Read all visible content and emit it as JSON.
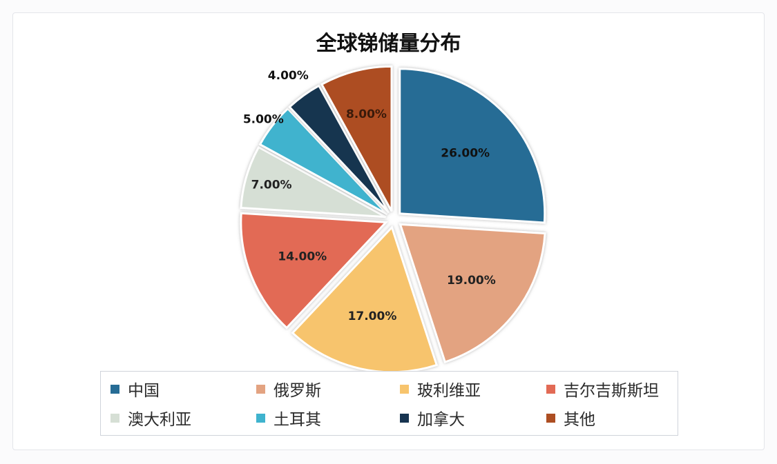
{
  "chart_data": {
    "type": "pie",
    "title": "全球锑储量分布",
    "categories": [
      "中国",
      "俄罗斯",
      "玻利维亚",
      "吉尔吉斯斯坦",
      "澳大利亚",
      "土耳其",
      "加拿大",
      "其他"
    ],
    "values": [
      26,
      19,
      17,
      14,
      7,
      5,
      4,
      8
    ],
    "data_labels": [
      "26.00%",
      "19.00%",
      "17.00%",
      "14.00%",
      "7.00%",
      "5.00%",
      "4.00%",
      "8.00%"
    ],
    "colors": [
      "#266c95",
      "#e3a381",
      "#f7c46d",
      "#e26a55",
      "#d6dfd5",
      "#3fb3ce",
      "#173450",
      "#ad4e22"
    ],
    "legend_position": "bottom",
    "exploded": true
  }
}
